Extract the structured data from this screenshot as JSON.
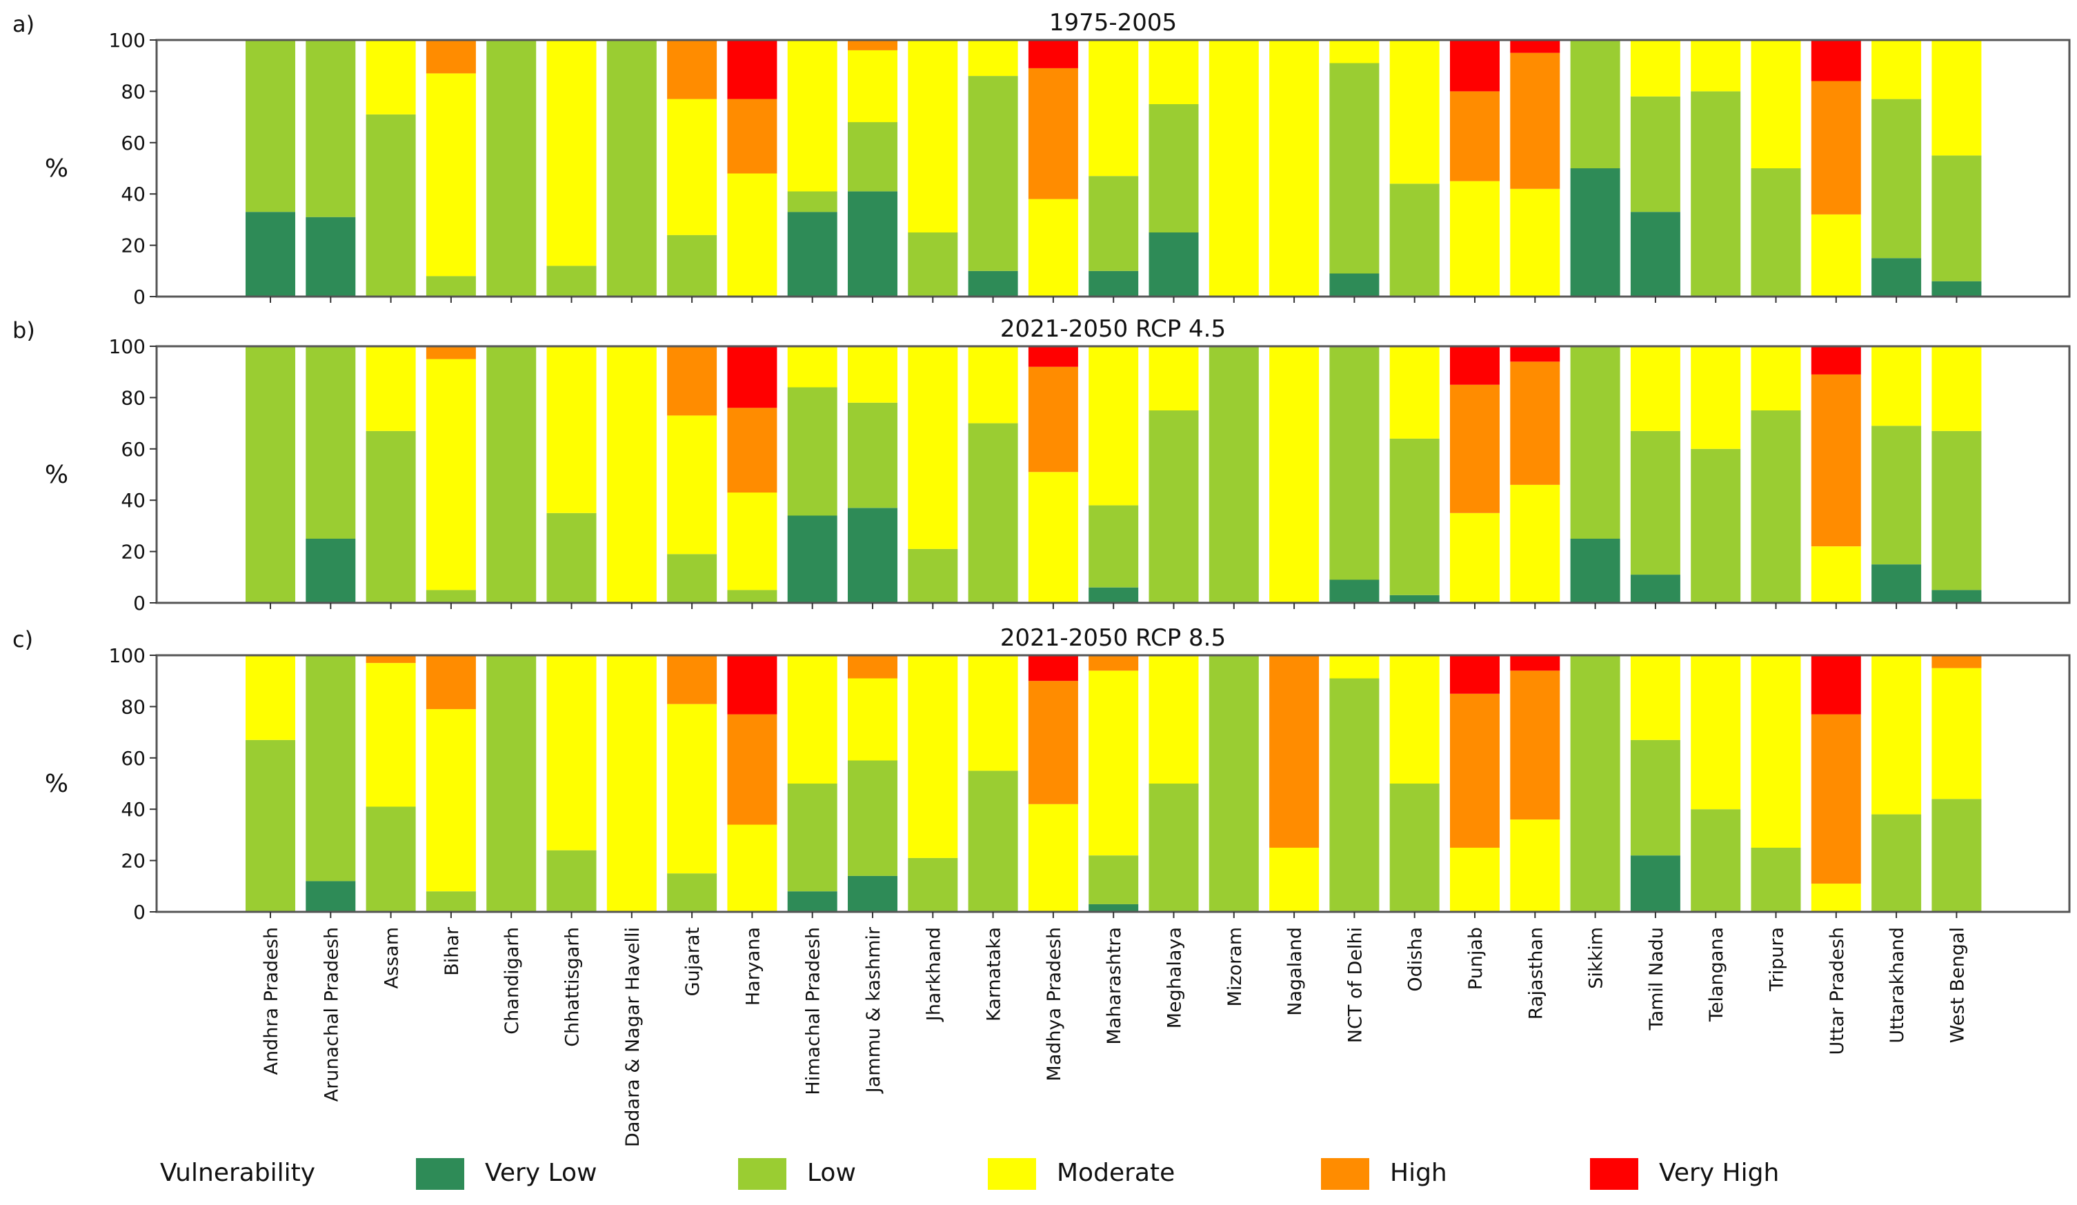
{
  "chart_data": {
    "type": "bar",
    "stacked": true,
    "percent": true,
    "ylabel": "%",
    "ylim": [
      0,
      100
    ],
    "yticks": [
      0,
      20,
      40,
      60,
      80,
      100
    ],
    "grid": false,
    "categories": [
      "Andhra Pradesh",
      "Arunachal Pradesh",
      "Assam",
      "Bihar",
      "Chandigarh",
      "Chhattisgarh",
      "Dadara & Nagar Havelli",
      "Gujarat",
      "Haryana",
      "Himachal Pradesh",
      "Jammu & kashmir",
      "Jharkhand",
      "Karnataka",
      "Madhya Pradesh",
      "Maharashtra",
      "Meghalaya",
      "Mizoram",
      "Nagaland",
      "NCT of Delhi",
      "Odisha",
      "Punjab",
      "Rajasthan",
      "Sikkim",
      "Tamil Nadu",
      "Telangana",
      "Tripura",
      "Uttar Pradesh",
      "Uttarakhand",
      "West Bengal"
    ],
    "legend": {
      "title": "Vulnerability",
      "position": "bottom",
      "entries": [
        {
          "name": "Very Low",
          "color": "#2e8b57"
        },
        {
          "name": "Low",
          "color": "#9acd32"
        },
        {
          "name": "Moderate",
          "color": "#ffff00"
        },
        {
          "name": "High",
          "color": "#ff8c00"
        },
        {
          "name": "Very High",
          "color": "#ff0000"
        }
      ]
    },
    "panels": [
      {
        "label": "a)",
        "title": "1975-2005",
        "series": [
          {
            "name": "Very Low",
            "values": [
              33,
              31,
              0,
              0,
              0,
              0,
              0,
              0,
              0,
              33,
              41,
              0,
              10,
              0,
              10,
              25,
              0,
              0,
              9,
              0,
              0,
              0,
              50,
              33,
              0,
              0,
              0,
              15,
              6
            ]
          },
          {
            "name": "Low",
            "values": [
              67,
              69,
              71,
              8,
              100,
              12,
              100,
              24,
              0,
              8,
              27,
              25,
              76,
              0,
              37,
              50,
              0,
              0,
              82,
              44,
              0,
              0,
              50,
              45,
              80,
              50,
              0,
              62,
              49
            ]
          },
          {
            "name": "Moderate",
            "values": [
              0,
              0,
              29,
              79,
              0,
              88,
              0,
              53,
              48,
              59,
              28,
              75,
              14,
              38,
              53,
              25,
              100,
              100,
              9,
              56,
              45,
              42,
              0,
              22,
              20,
              50,
              32,
              23,
              45
            ]
          },
          {
            "name": "High",
            "values": [
              0,
              0,
              0,
              13,
              0,
              0,
              0,
              23,
              29,
              0,
              4,
              0,
              0,
              51,
              0,
              0,
              0,
              0,
              0,
              0,
              35,
              53,
              0,
              0,
              0,
              0,
              52,
              0,
              0
            ]
          },
          {
            "name": "Very High",
            "values": [
              0,
              0,
              0,
              0,
              0,
              0,
              0,
              0,
              23,
              0,
              0,
              0,
              0,
              11,
              0,
              0,
              0,
              0,
              0,
              0,
              20,
              5,
              0,
              0,
              0,
              0,
              16,
              0,
              0
            ]
          }
        ]
      },
      {
        "label": "b)",
        "title": "2021-2050 RCP 4.5",
        "series": [
          {
            "name": "Very Low",
            "values": [
              0,
              25,
              0,
              0,
              0,
              0,
              0,
              0,
              0,
              34,
              37,
              0,
              0,
              0,
              6,
              0,
              0,
              0,
              9,
              3,
              0,
              0,
              25,
              11,
              0,
              0,
              0,
              15,
              5
            ]
          },
          {
            "name": "Low",
            "values": [
              100,
              75,
              67,
              5,
              100,
              35,
              0,
              19,
              5,
              50,
              41,
              21,
              70,
              0,
              32,
              75,
              100,
              0,
              91,
              61,
              0,
              0,
              75,
              56,
              60,
              75,
              0,
              54,
              62
            ]
          },
          {
            "name": "Moderate",
            "values": [
              0,
              0,
              33,
              90,
              0,
              65,
              100,
              54,
              38,
              16,
              22,
              79,
              30,
              51,
              62,
              25,
              0,
              100,
              0,
              36,
              35,
              46,
              0,
              33,
              40,
              25,
              22,
              31,
              33
            ]
          },
          {
            "name": "High",
            "values": [
              0,
              0,
              0,
              5,
              0,
              0,
              0,
              27,
              33,
              0,
              0,
              0,
              0,
              41,
              0,
              0,
              0,
              0,
              0,
              0,
              50,
              48,
              0,
              0,
              0,
              0,
              67,
              0,
              0
            ]
          },
          {
            "name": "Very High",
            "values": [
              0,
              0,
              0,
              0,
              0,
              0,
              0,
              0,
              24,
              0,
              0,
              0,
              0,
              8,
              0,
              0,
              0,
              0,
              0,
              0,
              15,
              6,
              0,
              0,
              0,
              0,
              11,
              0,
              0
            ]
          }
        ]
      },
      {
        "label": "c)",
        "title": "2021-2050 RCP 8.5",
        "series": [
          {
            "name": "Very Low",
            "values": [
              0,
              12,
              0,
              0,
              0,
              0,
              0,
              0,
              0,
              8,
              14,
              0,
              0,
              0,
              3,
              0,
              0,
              0,
              0,
              0,
              0,
              0,
              0,
              22,
              0,
              0,
              0,
              0,
              0
            ]
          },
          {
            "name": "Low",
            "values": [
              67,
              88,
              41,
              8,
              100,
              24,
              0,
              15,
              0,
              42,
              45,
              21,
              55,
              0,
              19,
              50,
              100,
              0,
              91,
              50,
              0,
              0,
              100,
              45,
              40,
              25,
              0,
              38,
              44
            ]
          },
          {
            "name": "Moderate",
            "values": [
              33,
              0,
              56,
              71,
              0,
              76,
              100,
              66,
              34,
              50,
              32,
              79,
              45,
              42,
              72,
              50,
              0,
              25,
              9,
              50,
              25,
              36,
              0,
              33,
              60,
              75,
              11,
              62,
              51
            ]
          },
          {
            "name": "High",
            "values": [
              0,
              0,
              3,
              21,
              0,
              0,
              0,
              19,
              43,
              0,
              9,
              0,
              0,
              48,
              6,
              0,
              0,
              75,
              0,
              0,
              60,
              58,
              0,
              0,
              0,
              0,
              66,
              0,
              5
            ]
          },
          {
            "name": "Very High",
            "values": [
              0,
              0,
              0,
              0,
              0,
              0,
              0,
              0,
              23,
              0,
              0,
              0,
              0,
              10,
              0,
              0,
              0,
              0,
              0,
              0,
              15,
              6,
              0,
              0,
              0,
              0,
              23,
              0,
              0
            ]
          }
        ]
      }
    ]
  }
}
